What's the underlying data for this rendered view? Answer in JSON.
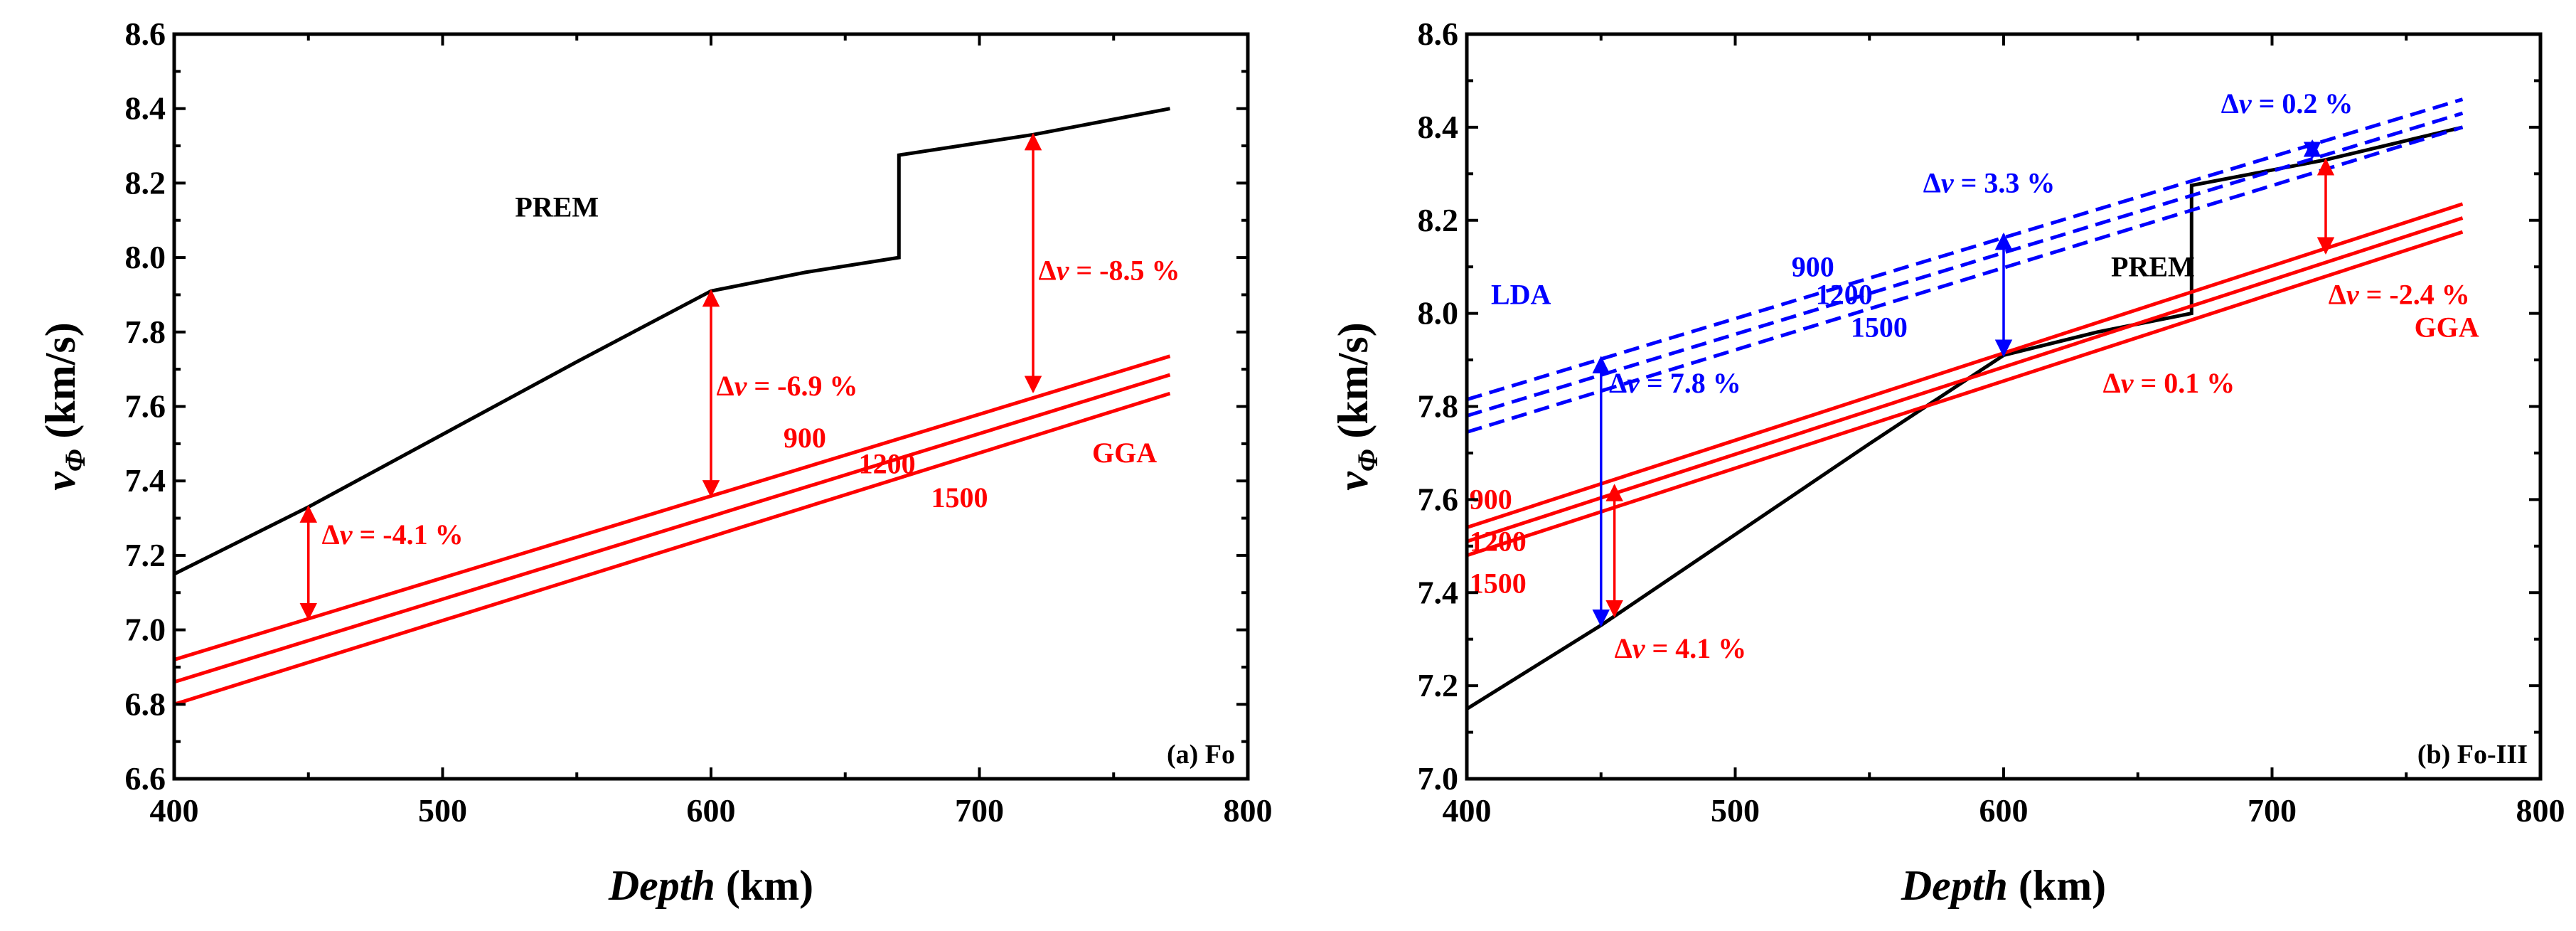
{
  "chart_data": [
    {
      "type": "line",
      "panel_label": "(a) Fo",
      "xlabel": {
        "italic": "Depth",
        "rest": " (km)"
      },
      "ylabel": {
        "symbol": "v",
        "subscript": "Φ",
        "rest": " (km/s)"
      },
      "xlim": [
        400,
        800
      ],
      "ylim": [
        6.6,
        8.6
      ],
      "x_ticks": [
        400,
        500,
        600,
        700,
        800
      ],
      "y_ticks": [
        6.6,
        6.8,
        7.0,
        7.2,
        7.4,
        7.6,
        7.8,
        8.0,
        8.2,
        8.4,
        8.6
      ],
      "x_tick_labels": [
        "400",
        "500",
        "600",
        "700",
        "800"
      ],
      "y_tick_labels": [
        "6.6",
        "6.8",
        "7.0",
        "7.2",
        "7.4",
        "7.6",
        "7.8",
        "8.0",
        "8.2",
        "8.4",
        "8.6"
      ],
      "series": [
        {
          "name": "PREM",
          "color": "#000000",
          "dashed": false,
          "points": [
            [
              400,
              7.15
            ],
            [
              450,
              7.33
            ],
            [
              550,
              7.72
            ],
            [
              600,
              7.91
            ],
            [
              635,
              7.96
            ],
            [
              670,
              8.0
            ],
            [
              670,
              8.275
            ],
            [
              720,
              8.33
            ],
            [
              771,
              8.4
            ]
          ]
        },
        {
          "name": "GGA 900",
          "color": "#ff0000",
          "dashed": false,
          "points": [
            [
              400,
              6.92
            ],
            [
              771,
              7.735
            ]
          ]
        },
        {
          "name": "GGA 1200",
          "color": "#ff0000",
          "dashed": false,
          "points": [
            [
              400,
              6.86
            ],
            [
              771,
              7.685
            ]
          ]
        },
        {
          "name": "GGA 1500",
          "color": "#ff0000",
          "dashed": false,
          "points": [
            [
              400,
              6.8
            ],
            [
              771,
              7.635
            ]
          ]
        }
      ],
      "arrows": [
        {
          "x": 450,
          "y1": 7.03,
          "y2": 7.33,
          "color": "#ff0000",
          "label": "-4.1 %"
        },
        {
          "x": 600,
          "y1": 7.36,
          "y2": 7.91,
          "color": "#ff0000",
          "label": "-6.9 %"
        },
        {
          "x": 720,
          "y1": 7.64,
          "y2": 8.33,
          "color": "#ff0000",
          "label": "-8.5 %"
        }
      ],
      "texts": [
        {
          "text": "PREM",
          "x": 527,
          "y": 8.11,
          "color": "#000000"
        },
        {
          "text": "GGA",
          "x": 742,
          "y": 7.45,
          "color": "#ff0000"
        },
        {
          "text": "900",
          "x": 627,
          "y": 7.49,
          "color": "#ff0000"
        },
        {
          "text": "1200",
          "x": 655,
          "y": 7.42,
          "color": "#ff0000"
        },
        {
          "text": "1500",
          "x": 682,
          "y": 7.33,
          "color": "#ff0000"
        }
      ],
      "delta_prefix": "Δ",
      "delta_var": "v",
      "delta_eq": " = ",
      "delta_labels_pos": [
        [
          455,
          7.23
        ],
        [
          602,
          7.63
        ],
        [
          722,
          7.94
        ]
      ]
    },
    {
      "type": "line",
      "panel_label": "(b) Fo-III",
      "xlabel": {
        "italic": "Depth",
        "rest": " (km)"
      },
      "ylabel": {
        "symbol": "v",
        "subscript": "Φ",
        "rest": " (km/s)"
      },
      "xlim": [
        400,
        800
      ],
      "ylim": [
        7.0,
        8.6
      ],
      "x_ticks": [
        400,
        500,
        600,
        700,
        800
      ],
      "y_ticks": [
        7.0,
        7.2,
        7.4,
        7.6,
        7.8,
        8.0,
        8.2,
        8.4,
        8.6
      ],
      "x_tick_labels": [
        "400",
        "500",
        "600",
        "700",
        "800"
      ],
      "y_tick_labels": [
        "7.0",
        "7.2",
        "7.4",
        "7.6",
        "7.8",
        "8.0",
        "8.2",
        "8.4",
        "8.6"
      ],
      "series": [
        {
          "name": "PREM",
          "color": "#000000",
          "dashed": false,
          "points": [
            [
              400,
              7.15
            ],
            [
              450,
              7.33
            ],
            [
              550,
              7.72
            ],
            [
              600,
              7.91
            ],
            [
              635,
              7.96
            ],
            [
              670,
              8.0
            ],
            [
              670,
              8.275
            ],
            [
              720,
              8.33
            ],
            [
              771,
              8.4
            ]
          ]
        },
        {
          "name": "GGA 900",
          "color": "#ff0000",
          "dashed": false,
          "points": [
            [
              400,
              7.54
            ],
            [
              771,
              8.235
            ]
          ]
        },
        {
          "name": "GGA 1200",
          "color": "#ff0000",
          "dashed": false,
          "points": [
            [
              400,
              7.51
            ],
            [
              771,
              8.205
            ]
          ]
        },
        {
          "name": "GGA 1500",
          "color": "#ff0000",
          "dashed": false,
          "points": [
            [
              400,
              7.48
            ],
            [
              771,
              8.175
            ]
          ]
        },
        {
          "name": "LDA 900",
          "color": "#0000ff",
          "dashed": true,
          "points": [
            [
              400,
              7.815
            ],
            [
              771,
              8.46
            ]
          ]
        },
        {
          "name": "LDA 1200",
          "color": "#0000ff",
          "dashed": true,
          "points": [
            [
              400,
              7.78
            ],
            [
              771,
              8.43
            ]
          ]
        },
        {
          "name": "LDA 1500",
          "color": "#0000ff",
          "dashed": true,
          "points": [
            [
              400,
              7.745
            ],
            [
              771,
              8.4
            ]
          ]
        }
      ],
      "arrows": [
        {
          "x": 450,
          "y1": 7.33,
          "y2": 7.905,
          "color": "#0000ff",
          "label": "7.8 %"
        },
        {
          "x": 455,
          "y1": 7.35,
          "y2": 7.63,
          "color": "#ff0000",
          "label": "4.1 %"
        },
        {
          "x": 600,
          "y1": 7.91,
          "y2": 8.17,
          "color": "#0000ff",
          "label": "3.3 %"
        },
        {
          "x": 715,
          "y1": 8.335,
          "y2": 8.37,
          "color": "#0000ff",
          "label": "0.2 %"
        },
        {
          "x": 720,
          "y1": 8.13,
          "y2": 8.33,
          "color": "#ff0000",
          "label": "-2.4 %"
        }
      ],
      "texts": [
        {
          "text": "PREM",
          "x": 640,
          "y": 8.08,
          "color": "#000000"
        },
        {
          "text": "LDA",
          "x": 409,
          "y": 8.02,
          "color": "#0000ff"
        },
        {
          "text": "GGA",
          "x": 753,
          "y": 7.95,
          "color": "#ff0000"
        },
        {
          "text": "900",
          "x": 521,
          "y": 8.08,
          "color": "#0000ff"
        },
        {
          "text": "1200",
          "x": 530,
          "y": 8.02,
          "color": "#0000ff"
        },
        {
          "text": "1500",
          "x": 543,
          "y": 7.95,
          "color": "#0000ff"
        },
        {
          "text": "900",
          "x": 401,
          "y": 7.58,
          "color": "#ff0000"
        },
        {
          "text": "1200",
          "x": 401,
          "y": 7.49,
          "color": "#ff0000"
        },
        {
          "text": "1500",
          "x": 401,
          "y": 7.4,
          "color": "#ff0000"
        }
      ],
      "delta_prefix": "Δ",
      "delta_var": "v",
      "delta_eq": " = ",
      "delta_labels_pos": [
        [
          453,
          7.83
        ],
        [
          455,
          7.26
        ],
        [
          570,
          8.26
        ],
        [
          681,
          8.43
        ],
        [
          721,
          8.02
        ],
        [
          637,
          7.83
        ]
      ],
      "extra_delta": {
        "label": "0.1 %",
        "color": "#ff0000"
      }
    }
  ]
}
